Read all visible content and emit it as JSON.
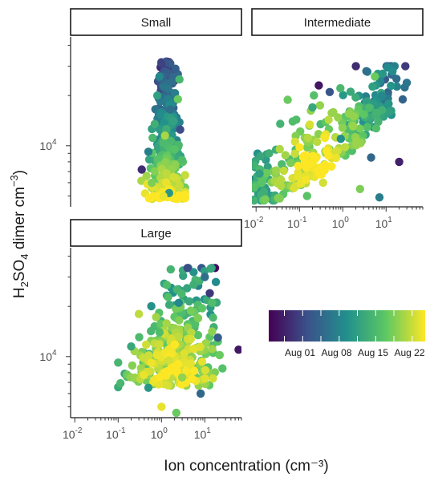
{
  "chart_data": {
    "type": "scatter",
    "x_scale": "log",
    "y_scale": "log",
    "xlabel": "Ion concentration (cm⁻³)",
    "ylabel_parts": [
      "H",
      "2",
      "SO",
      "4",
      " dimer cm",
      "−3",
      ")"
    ],
    "x_tick_labels": [
      {
        "value": 0.01,
        "base": "10",
        "exp": "-2"
      },
      {
        "value": 0.1,
        "base": "10",
        "exp": "-1"
      },
      {
        "value": 1,
        "base": "10",
        "exp": "0"
      },
      {
        "value": 10,
        "base": "10",
        "exp": "1"
      }
    ],
    "y_tick_labels": [
      {
        "value": 10000,
        "base": "10",
        "exp": "4"
      }
    ],
    "xlim": [
      0.008,
      70
    ],
    "ylim": [
      4300,
      45000
    ],
    "color": {
      "variable": "date",
      "palette": "viridis",
      "stops": [
        "#440154",
        "#3b528b",
        "#21908c",
        "#5dc863",
        "#fde725"
      ],
      "limits": [
        "2017-07-26",
        "2017-08-25"
      ],
      "breaks": [
        "Aug 01",
        "Aug 08",
        "Aug 15",
        "Aug 22"
      ],
      "break_dates": [
        "2017-08-01",
        "2017-08-08",
        "2017-08-15",
        "2017-08-22"
      ]
    },
    "panels": [
      {
        "name": "Small",
        "cloud_summary": {
          "x_range": [
            0.3,
            3.5
          ],
          "y_range": [
            4800,
            32000
          ],
          "center": [
            1.3,
            7500
          ]
        },
        "points": [
          {
            "x": 1.0,
            "y": 31000,
            "date": "2017-08-01"
          },
          {
            "x": 2.1,
            "y": 29000,
            "date": "2017-08-04"
          },
          {
            "x": 0.9,
            "y": 26000,
            "date": "2017-08-09"
          },
          {
            "x": 2.6,
            "y": 25000,
            "date": "2017-08-15"
          },
          {
            "x": 1.4,
            "y": 22000,
            "date": "2017-08-07"
          },
          {
            "x": 0.8,
            "y": 20000,
            "date": "2017-08-12"
          },
          {
            "x": 2.4,
            "y": 19000,
            "date": "2017-08-18"
          },
          {
            "x": 1.6,
            "y": 16500,
            "date": "2017-08-06"
          },
          {
            "x": 0.7,
            "y": 13500,
            "date": "2017-08-14"
          },
          {
            "x": 2.7,
            "y": 12500,
            "date": "2017-08-02"
          },
          {
            "x": 1.2,
            "y": 11500,
            "date": "2017-08-21"
          },
          {
            "x": 0.5,
            "y": 9200,
            "date": "2017-08-08"
          },
          {
            "x": 3.0,
            "y": 8200,
            "date": "2017-08-16"
          },
          {
            "x": 0.35,
            "y": 7200,
            "date": "2017-07-30"
          },
          {
            "x": 1.9,
            "y": 6500,
            "date": "2017-08-23"
          },
          {
            "x": 0.6,
            "y": 6000,
            "date": "2017-08-19"
          },
          {
            "x": 1.5,
            "y": 5200,
            "date": "2017-08-11"
          },
          {
            "x": 1.1,
            "y": 5000,
            "date": "2017-08-24"
          }
        ]
      },
      {
        "name": "Intermediate",
        "cloud_summary": {
          "x_range": [
            0.009,
            30
          ],
          "y_range": [
            4700,
            30000
          ],
          "center": [
            0.25,
            7200
          ]
        },
        "points": [
          {
            "x": 2.0,
            "y": 30000,
            "date": "2017-07-30"
          },
          {
            "x": 3.5,
            "y": 28000,
            "date": "2017-08-06"
          },
          {
            "x": 5.5,
            "y": 26000,
            "date": "2017-08-18"
          },
          {
            "x": 0.28,
            "y": 23000,
            "date": "2017-07-28"
          },
          {
            "x": 0.5,
            "y": 21000,
            "date": "2017-08-03"
          },
          {
            "x": 8.0,
            "y": 20000,
            "date": "2017-08-09"
          },
          {
            "x": 0.2,
            "y": 17000,
            "date": "2017-08-13"
          },
          {
            "x": 1.8,
            "y": 15000,
            "date": "2017-08-20"
          },
          {
            "x": 0.07,
            "y": 14000,
            "date": "2017-08-16"
          },
          {
            "x": 0.9,
            "y": 11000,
            "date": "2017-08-10"
          },
          {
            "x": 0.02,
            "y": 9000,
            "date": "2017-08-14"
          },
          {
            "x": 4.5,
            "y": 8500,
            "date": "2017-08-05"
          },
          {
            "x": 20.0,
            "y": 8000,
            "date": "2017-07-29"
          },
          {
            "x": 0.012,
            "y": 6800,
            "date": "2017-08-12"
          },
          {
            "x": 0.35,
            "y": 6000,
            "date": "2017-08-23"
          },
          {
            "x": 2.5,
            "y": 5500,
            "date": "2017-08-19"
          },
          {
            "x": 0.15,
            "y": 5000,
            "date": "2017-08-17"
          },
          {
            "x": 7.0,
            "y": 4900,
            "date": "2017-08-08"
          }
        ]
      },
      {
        "name": "Large",
        "cloud_summary": {
          "x_range": [
            0.1,
            60
          ],
          "y_range": [
            4400,
            34000
          ],
          "center": [
            2.0,
            7500
          ]
        },
        "points": [
          {
            "x": 4.0,
            "y": 34000,
            "date": "2017-08-02"
          },
          {
            "x": 10.0,
            "y": 30000,
            "date": "2017-08-06"
          },
          {
            "x": 5.5,
            "y": 27000,
            "date": "2017-08-14"
          },
          {
            "x": 13.0,
            "y": 24000,
            "date": "2017-07-31"
          },
          {
            "x": 2.5,
            "y": 21000,
            "date": "2017-08-09"
          },
          {
            "x": 0.3,
            "y": 18000,
            "date": "2017-08-22"
          },
          {
            "x": 7.0,
            "y": 17000,
            "date": "2017-08-19"
          },
          {
            "x": 0.9,
            "y": 14000,
            "date": "2017-08-16"
          },
          {
            "x": 20.0,
            "y": 13000,
            "date": "2017-08-04"
          },
          {
            "x": 0.2,
            "y": 11500,
            "date": "2017-08-13"
          },
          {
            "x": 60.0,
            "y": 11000,
            "date": "2017-07-28"
          },
          {
            "x": 1.5,
            "y": 9500,
            "date": "2017-08-23"
          },
          {
            "x": 0.1,
            "y": 9200,
            "date": "2017-08-15"
          },
          {
            "x": 3.0,
            "y": 7500,
            "date": "2017-08-20"
          },
          {
            "x": 0.5,
            "y": 6500,
            "date": "2017-08-11"
          },
          {
            "x": 8.0,
            "y": 6000,
            "date": "2017-08-05"
          },
          {
            "x": 1.0,
            "y": 5000,
            "date": "2017-08-24"
          },
          {
            "x": 2.2,
            "y": 4600,
            "date": "2017-08-18"
          }
        ]
      }
    ]
  }
}
